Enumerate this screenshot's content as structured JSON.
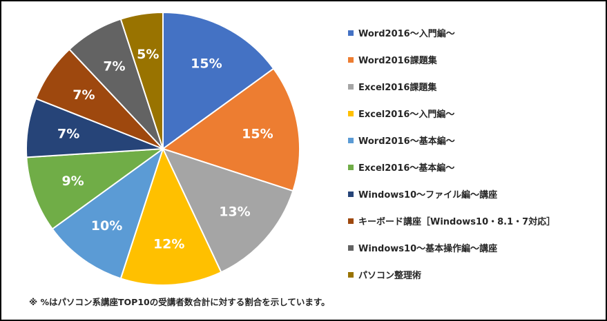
{
  "chart_data": {
    "type": "pie",
    "categories": [
      "Word2016～入門編～",
      "Word2016課題集",
      "Excel2016課題集",
      "Excel2016～入門編～",
      "Word2016～基本編～",
      "Excel2016～基本編～",
      "Windows10～ファイル編～講座",
      "キーボード講座［Windows10・8.1・7対応］",
      "Windows10～基本操作編～講座",
      "パソコン整理術"
    ],
    "values": [
      15,
      15,
      13,
      12,
      10,
      9,
      7,
      7,
      7,
      5
    ],
    "value_labels": [
      "15%",
      "15%",
      "13%",
      "12%",
      "10%",
      "9%",
      "7%",
      "7%",
      "7%",
      "5%"
    ],
    "colors": [
      "#4472C4",
      "#ED7D31",
      "#A5A5A5",
      "#FFC000",
      "#5B9BD5",
      "#70AD47",
      "#264478",
      "#9E480E",
      "#636363",
      "#997300"
    ],
    "label_colors": [
      "#ffffff",
      "#ffffff",
      "#ffffff",
      "#ffffff",
      "#ffffff",
      "#ffffff",
      "#ffffff",
      "#ffffff",
      "#ffffff",
      "#ffffff"
    ],
    "legend_position": "right",
    "start_angle": "12 o'clock, clockwise"
  },
  "footnote": "※ %はパソコン系講座TOP10の受講者数合計に対する割合を示しています。"
}
